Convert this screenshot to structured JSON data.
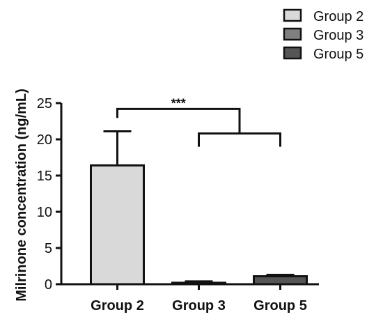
{
  "chart_data": {
    "type": "bar",
    "categories": [
      "Group 2",
      "Group 3",
      "Group 5"
    ],
    "values": [
      16.4,
      0.2,
      1.1
    ],
    "errors": [
      4.7,
      0.2,
      0.2
    ],
    "colors": [
      "#d9d9d9",
      "#808080",
      "#555555"
    ],
    "ylabel": "Milrinone concentration (ng/mL)",
    "ylim": [
      0,
      25
    ],
    "yticks": [
      0,
      5,
      10,
      15,
      20,
      25
    ],
    "legend": {
      "position": "top-right",
      "entries": [
        {
          "label": "Group 2",
          "color": "#d9d9d9"
        },
        {
          "label": "Group 3",
          "color": "#808080"
        },
        {
          "label": "Group 5",
          "color": "#555555"
        }
      ]
    },
    "significance": {
      "label": "***",
      "left": "Group 2",
      "right": [
        "Group 3",
        "Group 5"
      ],
      "level": 24.2,
      "inner_level": 20.8
    }
  }
}
